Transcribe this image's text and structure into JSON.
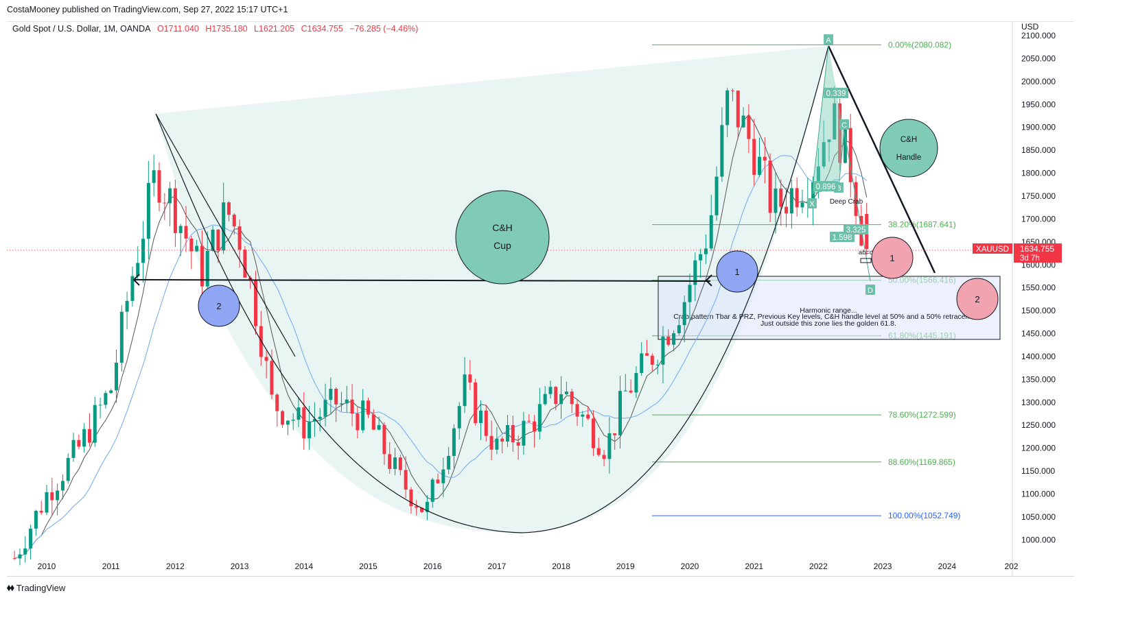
{
  "header": {
    "publisher": "CostaMooney published on TradingView.com, Sep 27, 2022 15:17 UTC+1",
    "symbol": "Gold Spot / U.S. Dollar, 1M, OANDA",
    "open": "O1711.040",
    "high": "H1735.180",
    "low": "L1621.205",
    "close": "C1634.755",
    "change": "−76.285 (−4.46%)"
  },
  "price_axis": {
    "currency": "USD",
    "ticks": [
      "2100.000",
      "2050.000",
      "2000.000",
      "1950.000",
      "1900.000",
      "1850.000",
      "1800.000",
      "1750.000",
      "1700.000",
      "1650.000",
      "1600.000",
      "1550.000",
      "1500.000",
      "1450.000",
      "1400.000",
      "1350.000",
      "1300.000",
      "1250.000",
      "1200.000",
      "1150.000",
      "1100.000",
      "1050.000",
      "1000.000"
    ],
    "current_symbol": "XAUUSD",
    "current_price": "1634.755",
    "countdown": "3d 7h"
  },
  "time_axis": {
    "ticks": [
      "2010",
      "2011",
      "2012",
      "2013",
      "2014",
      "2015",
      "2016",
      "2017",
      "2018",
      "2019",
      "2020",
      "2021",
      "2022",
      "2023",
      "2024",
      "202"
    ]
  },
  "fib_levels": [
    {
      "label": "0.00%(2080.082)",
      "value": 2080.082,
      "color": "#4caf50"
    },
    {
      "label": "38.20%(1687.641)",
      "value": 1687.641,
      "color": "#4caf50"
    },
    {
      "label": "50.00%(1566.416)",
      "value": 1566.416,
      "color": "#4caf50"
    },
    {
      "label": "61.80%(1445.191)",
      "value": 1445.191,
      "color": "#4caf50"
    },
    {
      "label": "78.60%(1272.599)",
      "value": 1272.599,
      "color": "#4caf50"
    },
    {
      "label": "88.60%(1169.865)",
      "value": 1169.865,
      "color": "#4caf50"
    },
    {
      "label": "100.00%(1052.749)",
      "value": 1052.749,
      "color": "#2962ff"
    }
  ],
  "annotations": {
    "cup_line1": "C&H",
    "cup_line2": "Cup",
    "handle_line1": "C&H",
    "handle_line2": "Handle",
    "circle_1": "1",
    "circle_2": "2",
    "crab_label": "Deep Crab",
    "abcd_label": "ab=cd",
    "pattern_points": [
      "A",
      "X",
      "B",
      "C",
      "D"
    ],
    "ratios": [
      "0.339",
      "0.896",
      "1.598",
      "3.325"
    ],
    "box_title": "Harmonic range...",
    "box_line1": "Crab pattern Tbar & PRZ, Previous Key levels, C&H handle level at 50% and a 50% retracement.",
    "box_line2": "Just outside this zone lies the golden 61.8."
  },
  "colors": {
    "bull": "#089981",
    "bear": "#f23645",
    "cup_fill": "#e3f3ef",
    "teal_circle": "#7fcbb6",
    "blue_circle": "#8fa6f5",
    "pink_circle": "#f2a3b0"
  },
  "footer": {
    "brand": "TradingView"
  },
  "chart_data": {
    "type": "candlestick",
    "title": "Gold Spot / U.S. Dollar, 1M, OANDA",
    "y_range": [
      960,
      2110
    ],
    "x_range": [
      2009.4,
      2025.0
    ],
    "monthly_closes_anchor": [
      [
        2009.5,
        960
      ],
      [
        2010.0,
        1100
      ],
      [
        2010.5,
        1200
      ],
      [
        2011.0,
        1330
      ],
      [
        2011.3,
        1560
      ],
      [
        2011.7,
        1800
      ],
      [
        2012.0,
        1720
      ],
      [
        2012.4,
        1580
      ],
      [
        2012.8,
        1720
      ],
      [
        2013.0,
        1660
      ],
      [
        2013.3,
        1470
      ],
      [
        2013.5,
        1300
      ],
      [
        2014.0,
        1250
      ],
      [
        2014.5,
        1300
      ],
      [
        2015.0,
        1260
      ],
      [
        2015.5,
        1130
      ],
      [
        2015.9,
        1060
      ],
      [
        2016.5,
        1330
      ],
      [
        2017.0,
        1200
      ],
      [
        2017.5,
        1250
      ],
      [
        2018.0,
        1330
      ],
      [
        2018.7,
        1200
      ],
      [
        2019.0,
        1320
      ],
      [
        2019.5,
        1420
      ],
      [
        2019.9,
        1520
      ],
      [
        2020.3,
        1680
      ],
      [
        2020.6,
        1970
      ],
      [
        2021.0,
        1850
      ],
      [
        2021.3,
        1720
      ],
      [
        2021.9,
        1800
      ],
      [
        2022.2,
        1930
      ],
      [
        2022.5,
        1810
      ],
      [
        2022.73,
        1634.755
      ]
    ],
    "last": {
      "open": 1711.04,
      "high": 1735.18,
      "low": 1621.205,
      "close": 1634.755
    }
  }
}
